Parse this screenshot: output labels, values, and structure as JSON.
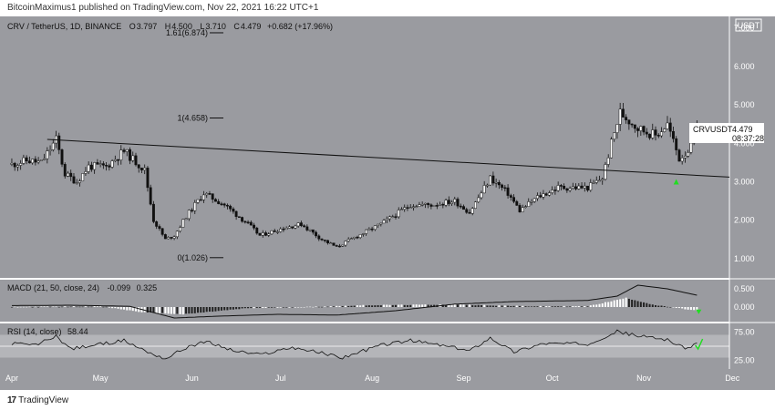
{
  "header": {
    "published": "BitcoinMaximus1 published on TradingView.com, Nov 22, 2021 16:22 UTC+1"
  },
  "legend": {
    "symbol": "CRV / TetherUS, 1D, BINANCE",
    "o_label": "O",
    "o_value": "3.797",
    "h_label": "H",
    "h_value": "4.500",
    "l_label": "L",
    "l_value": "3.710",
    "c_label": "C",
    "c_value": "4.479",
    "change": "+0.682 (+17.96%)"
  },
  "currency_badge": "USDT",
  "price_label": {
    "symbol": "CRVUSDT",
    "price": "4.479",
    "countdown": "08:37:28"
  },
  "fib_levels": [
    {
      "label": "1.61(6.874)",
      "price": 6.874
    },
    {
      "label": "1(4.658)",
      "price": 4.658
    },
    {
      "label": "0(1.026)",
      "price": 1.026
    }
  ],
  "macd": {
    "label": "MACD (21, 50, close, 24)",
    "v1": "-0.099",
    "v2": "0.325"
  },
  "rsi": {
    "label": "RSI (14, close)",
    "value": "58.44"
  },
  "footer": {
    "brand": "TradingView"
  },
  "chart_data": [
    {
      "type": "candlestick",
      "title": "CRV / TetherUS, 1D, BINANCE",
      "ylim": [
        0.5,
        7.3
      ],
      "y_ticks": [
        "7.000",
        "6.000",
        "5.000",
        "4.000",
        "3.000",
        "2.000",
        "1.000"
      ],
      "x_ticks": [
        "Apr",
        "May",
        "Jun",
        "Jul",
        "Aug",
        "Sep",
        "Oct",
        "Nov",
        "Dec"
      ],
      "x_range_days": [
        -4,
        243
      ],
      "x_tick_days": [
        0,
        30,
        61,
        91,
        122,
        153,
        183,
        214,
        244
      ],
      "trendline": {
        "from": {
          "day": 12,
          "price": 4.1
        },
        "to": {
          "day": 243,
          "price": 3.12
        }
      },
      "markers": [
        {
          "day": 225,
          "price": 3.0,
          "type": "green-arrow-up"
        }
      ],
      "series": [
        {
          "name": "CRV/USDT",
          "keypoints": [
            {
              "day": 0,
              "price": 3.45
            },
            {
              "day": 5,
              "price": 3.55
            },
            {
              "day": 10,
              "price": 3.5
            },
            {
              "day": 15,
              "price": 4.1
            },
            {
              "day": 18,
              "price": 3.2
            },
            {
              "day": 22,
              "price": 3.0
            },
            {
              "day": 26,
              "price": 3.4
            },
            {
              "day": 32,
              "price": 3.4
            },
            {
              "day": 38,
              "price": 3.8
            },
            {
              "day": 45,
              "price": 3.3
            },
            {
              "day": 48,
              "price": 2.0
            },
            {
              "day": 52,
              "price": 1.5
            },
            {
              "day": 55,
              "price": 1.6
            },
            {
              "day": 59,
              "price": 2.1
            },
            {
              "day": 65,
              "price": 2.7
            },
            {
              "day": 72,
              "price": 2.4
            },
            {
              "day": 80,
              "price": 1.9
            },
            {
              "day": 84,
              "price": 1.6
            },
            {
              "day": 92,
              "price": 1.8
            },
            {
              "day": 98,
              "price": 1.9
            },
            {
              "day": 105,
              "price": 1.5
            },
            {
              "day": 110,
              "price": 1.3
            },
            {
              "day": 116,
              "price": 1.55
            },
            {
              "day": 125,
              "price": 1.9
            },
            {
              "day": 135,
              "price": 2.4
            },
            {
              "day": 142,
              "price": 2.4
            },
            {
              "day": 150,
              "price": 2.5
            },
            {
              "day": 155,
              "price": 2.2
            },
            {
              "day": 162,
              "price": 3.1
            },
            {
              "day": 168,
              "price": 2.7
            },
            {
              "day": 172,
              "price": 2.25
            },
            {
              "day": 178,
              "price": 2.6
            },
            {
              "day": 185,
              "price": 2.85
            },
            {
              "day": 195,
              "price": 2.85
            },
            {
              "day": 200,
              "price": 3.1
            },
            {
              "day": 203,
              "price": 4.0
            },
            {
              "day": 206,
              "price": 4.8
            },
            {
              "day": 212,
              "price": 4.4
            },
            {
              "day": 218,
              "price": 4.2
            },
            {
              "day": 222,
              "price": 4.5
            },
            {
              "day": 226,
              "price": 3.6
            },
            {
              "day": 230,
              "price": 3.9
            },
            {
              "day": 232,
              "price": 4.479
            }
          ]
        }
      ]
    },
    {
      "type": "line",
      "title": "MACD (21, 50, close, 24)",
      "ylim": [
        -0.4,
        0.75
      ],
      "y_ticks": [
        "0.500",
        "0.000"
      ],
      "series": [
        {
          "name": "MACD",
          "keypoints": [
            {
              "day": 0,
              "value": 0.04
            },
            {
              "day": 20,
              "value": 0.05
            },
            {
              "day": 40,
              "value": 0.02
            },
            {
              "day": 55,
              "value": -0.3
            },
            {
              "day": 70,
              "value": -0.25
            },
            {
              "day": 90,
              "value": -0.2
            },
            {
              "day": 110,
              "value": -0.22
            },
            {
              "day": 130,
              "value": -0.1
            },
            {
              "day": 150,
              "value": 0.08
            },
            {
              "day": 170,
              "value": 0.15
            },
            {
              "day": 195,
              "value": 0.18
            },
            {
              "day": 205,
              "value": 0.3
            },
            {
              "day": 212,
              "value": 0.6
            },
            {
              "day": 222,
              "value": 0.5
            },
            {
              "day": 232,
              "value": 0.325
            }
          ]
        },
        {
          "name": "Histogram",
          "keypoints": [
            {
              "day": 0,
              "value": 0.0
            },
            {
              "day": 30,
              "value": 0.02
            },
            {
              "day": 45,
              "value": -0.15
            },
            {
              "day": 58,
              "value": -0.2
            },
            {
              "day": 80,
              "value": -0.03
            },
            {
              "day": 100,
              "value": 0.0
            },
            {
              "day": 120,
              "value": 0.05
            },
            {
              "day": 150,
              "value": 0.07
            },
            {
              "day": 175,
              "value": 0.02
            },
            {
              "day": 195,
              "value": 0.02
            },
            {
              "day": 208,
              "value": 0.25
            },
            {
              "day": 218,
              "value": 0.05
            },
            {
              "day": 232,
              "value": -0.099
            }
          ]
        }
      ]
    },
    {
      "type": "line",
      "title": "RSI (14, close)",
      "ylim": [
        10,
        90
      ],
      "y_ticks": [
        "75.00",
        "25.00"
      ],
      "band": [
        30,
        70
      ],
      "markers": [
        {
          "day": 233,
          "value": 58,
          "type": "green-check"
        }
      ],
      "series": [
        {
          "name": "RSI",
          "keypoints": [
            {
              "day": 0,
              "value": 55
            },
            {
              "day": 8,
              "value": 52
            },
            {
              "day": 15,
              "value": 68
            },
            {
              "day": 20,
              "value": 45
            },
            {
              "day": 28,
              "value": 52
            },
            {
              "day": 38,
              "value": 60
            },
            {
              "day": 46,
              "value": 40
            },
            {
              "day": 52,
              "value": 28
            },
            {
              "day": 60,
              "value": 50
            },
            {
              "day": 66,
              "value": 58
            },
            {
              "day": 75,
              "value": 42
            },
            {
              "day": 84,
              "value": 35
            },
            {
              "day": 95,
              "value": 48
            },
            {
              "day": 105,
              "value": 38
            },
            {
              "day": 112,
              "value": 30
            },
            {
              "day": 125,
              "value": 52
            },
            {
              "day": 135,
              "value": 60
            },
            {
              "day": 145,
              "value": 52
            },
            {
              "day": 155,
              "value": 42
            },
            {
              "day": 162,
              "value": 65
            },
            {
              "day": 170,
              "value": 40
            },
            {
              "day": 180,
              "value": 55
            },
            {
              "day": 195,
              "value": 54
            },
            {
              "day": 205,
              "value": 76
            },
            {
              "day": 212,
              "value": 68
            },
            {
              "day": 222,
              "value": 62
            },
            {
              "day": 228,
              "value": 45
            },
            {
              "day": 233,
              "value": 58.44
            }
          ]
        }
      ]
    }
  ]
}
